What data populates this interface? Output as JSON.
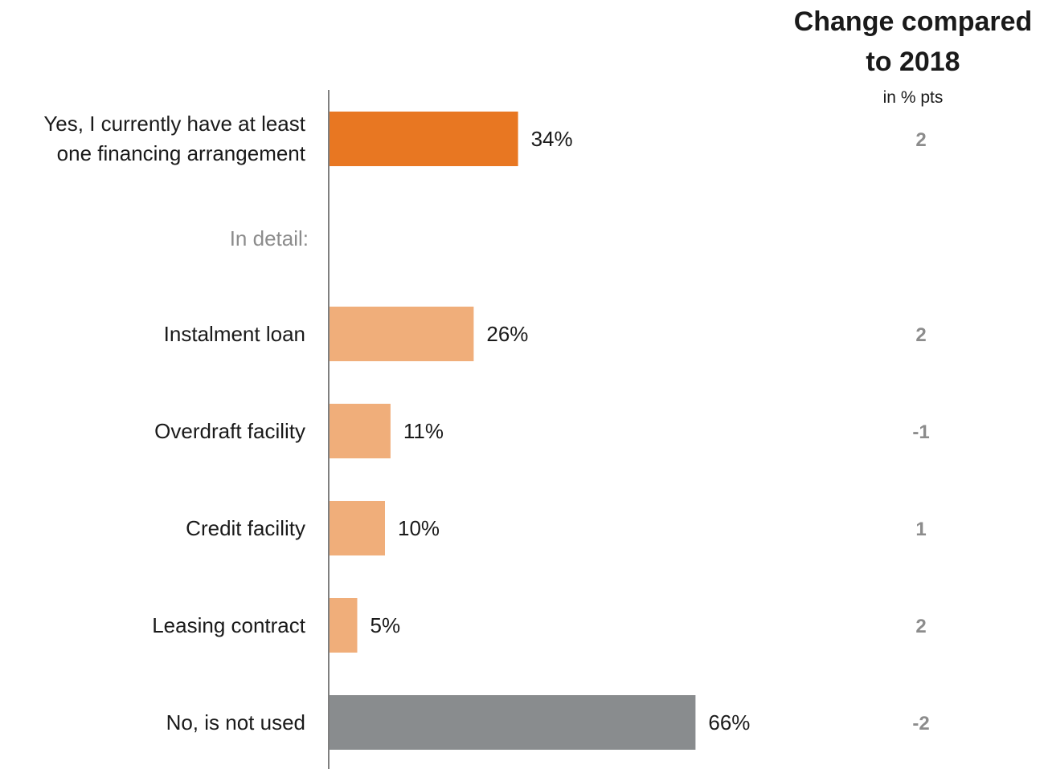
{
  "header": {
    "title_line1": "Change compared",
    "title_line2": "to 2018",
    "subtitle": "in % pts"
  },
  "section_label": "In detail:",
  "colors": {
    "primary": "#e87722",
    "light": "#f0ae7a",
    "neutral": "#898c8e",
    "axis": "#555555"
  },
  "chart_data": {
    "type": "bar",
    "orientation": "horizontal",
    "categories": [
      "Yes, I currently have at least one financing arrangement",
      "Instalment loan",
      "Overdraft facility",
      "Credit facility",
      "Leasing contract",
      "No, is not used"
    ],
    "values": [
      34,
      26,
      11,
      10,
      5,
      66
    ],
    "value_labels": [
      "34%",
      "26%",
      "11%",
      "10%",
      "5%",
      "66%"
    ],
    "change_vs_2018": [
      "2",
      "2",
      "-1",
      "1",
      "2",
      "-2"
    ],
    "bar_colors": [
      "primary",
      "light",
      "light",
      "light",
      "light",
      "neutral"
    ],
    "unit": "%",
    "xlim": [
      0,
      100
    ]
  }
}
